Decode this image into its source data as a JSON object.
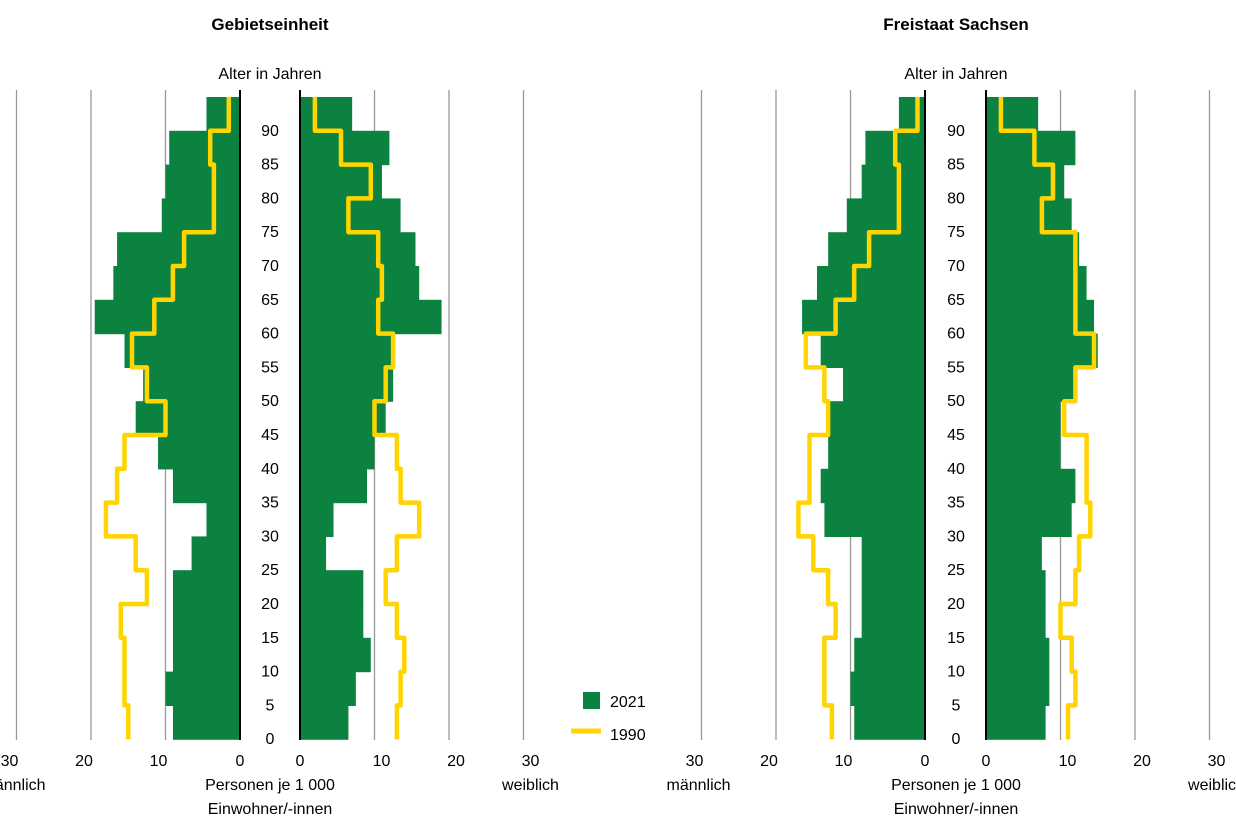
{
  "colors": {
    "bar_2021": "#0b8240",
    "line_1990": "#ffd400",
    "grid": "#999999",
    "axis": "#000000"
  },
  "legend": {
    "items": [
      {
        "label": "2021",
        "kind": "bar"
      },
      {
        "label": "1990",
        "kind": "line"
      }
    ]
  },
  "chart_data": [
    {
      "type": "population-pyramid",
      "title": "Gebietseinheit",
      "age_axis_label": "Alter in Jahren",
      "x_axis_label": "Personen je 1 000\nEinwohner/-innen",
      "left_label": "männlich",
      "right_label": "weiblich",
      "x_ticks": [
        30,
        20,
        10,
        0
      ],
      "xlim": [
        0,
        30
      ],
      "age_ticks": [
        0,
        5,
        10,
        15,
        20,
        25,
        30,
        35,
        40,
        45,
        50,
        55,
        60,
        65,
        70,
        75,
        80,
        85,
        90
      ],
      "age_groups": [
        0,
        5,
        10,
        15,
        20,
        25,
        30,
        35,
        40,
        45,
        50,
        55,
        60,
        65,
        70,
        75,
        80,
        85,
        90
      ],
      "series": [
        {
          "name": "2021",
          "sex": "männlich",
          "values": [
            9.0,
            10.0,
            9.0,
            9.0,
            9.0,
            6.5,
            4.5,
            9.0,
            11.0,
            14.0,
            13.0,
            15.5,
            19.5,
            17.0,
            16.5,
            10.5,
            10.0,
            9.5,
            4.5
          ]
        },
        {
          "name": "2021",
          "sex": "weiblich",
          "values": [
            6.5,
            7.5,
            9.5,
            8.5,
            8.5,
            3.5,
            4.5,
            9.0,
            10.0,
            11.5,
            12.5,
            12.5,
            19.0,
            16.0,
            15.5,
            13.5,
            11.0,
            12.0,
            7.0
          ]
        },
        {
          "name": "1990",
          "sex": "männlich",
          "values": [
            15.0,
            15.5,
            15.5,
            16.0,
            12.5,
            14.0,
            18.0,
            16.5,
            15.5,
            10.0,
            12.5,
            14.5,
            11.5,
            9.0,
            7.5,
            3.5,
            3.5,
            4.0,
            1.5
          ]
        },
        {
          "name": "1990",
          "sex": "weiblich",
          "values": [
            13.0,
            13.5,
            14.0,
            13.0,
            11.5,
            13.0,
            16.0,
            13.5,
            13.0,
            10.0,
            11.5,
            12.5,
            10.5,
            11.0,
            10.5,
            6.5,
            9.5,
            5.5,
            2.0
          ]
        }
      ]
    },
    {
      "type": "population-pyramid",
      "title": "Freistaat Sachsen",
      "age_axis_label": "Alter in Jahren",
      "x_axis_label": "Personen je 1 000\nEinwohner/-innen",
      "left_label": "männlich",
      "right_label": "weiblich",
      "x_ticks": [
        30,
        20,
        10,
        0
      ],
      "xlim": [
        0,
        30
      ],
      "age_ticks": [
        0,
        5,
        10,
        15,
        20,
        25,
        30,
        35,
        40,
        45,
        50,
        55,
        60,
        65,
        70,
        75,
        80,
        85,
        90
      ],
      "age_groups": [
        0,
        5,
        10,
        15,
        20,
        25,
        30,
        35,
        40,
        45,
        50,
        55,
        60,
        65,
        70,
        75,
        80,
        85,
        90
      ],
      "series": [
        {
          "name": "2021",
          "sex": "männlich",
          "values": [
            9.5,
            10.0,
            9.5,
            8.5,
            8.5,
            8.5,
            13.5,
            14.0,
            13.0,
            13.0,
            11.0,
            14.0,
            16.5,
            14.5,
            13.0,
            10.5,
            8.5,
            8.0,
            3.5
          ]
        },
        {
          "name": "2021",
          "sex": "weiblich",
          "values": [
            8.0,
            8.5,
            8.5,
            8.0,
            8.0,
            7.5,
            11.5,
            12.0,
            10.0,
            10.0,
            12.0,
            15.0,
            14.5,
            13.5,
            12.5,
            11.5,
            10.5,
            12.0,
            7.0
          ]
        },
        {
          "name": "1990",
          "sex": "männlich",
          "values": [
            12.5,
            13.5,
            13.5,
            12.0,
            13.0,
            15.0,
            17.0,
            15.5,
            15.5,
            13.0,
            13.5,
            16.0,
            12.0,
            9.5,
            7.5,
            3.5,
            3.5,
            4.0,
            1.0
          ]
        },
        {
          "name": "1990",
          "sex": "weiblich",
          "values": [
            11.0,
            12.0,
            11.5,
            10.0,
            12.0,
            12.5,
            14.0,
            13.5,
            13.5,
            10.5,
            12.0,
            14.5,
            12.0,
            12.0,
            12.0,
            7.5,
            9.0,
            6.5,
            2.0
          ]
        }
      ]
    }
  ]
}
